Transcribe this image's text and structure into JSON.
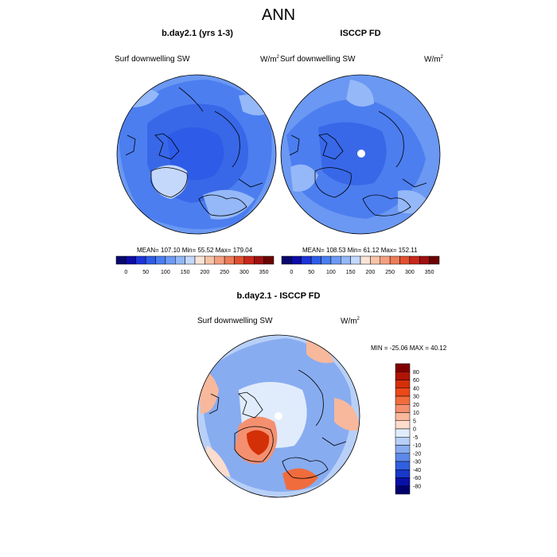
{
  "title": "ANN",
  "panels": [
    {
      "title": "b.day2.1 (yrs 1-3)",
      "variable": "Surf downwelling SW",
      "units_base": "W/m",
      "units_exp": "2",
      "stats": "MEAN= 107.10  Min=  55.52  Max= 179.04"
    },
    {
      "title": "ISCCP FD",
      "variable": "Surf downwelling SW",
      "units_base": "W/m",
      "units_exp": "2",
      "stats": "MEAN= 108.53  Min=  61.12  Max= 152.11"
    }
  ],
  "diff_panel": {
    "title": "b.day2.1 - ISCCP FD",
    "variable": "Surf downwelling SW",
    "units_base": "W/m",
    "units_exp": "2",
    "stats": "MIN = -25.06 MAX =  40.12"
  },
  "abs_colorbar": {
    "tick_labels": [
      "0",
      "50",
      "100",
      "150",
      "200",
      "250",
      "300",
      "350"
    ],
    "colors": [
      "#08086e",
      "#0c0ca8",
      "#1c34d8",
      "#2e5ce8",
      "#4a7ef0",
      "#6c9af4",
      "#94b8f8",
      "#c4d8fc",
      "#f8e4d8",
      "#f8c4a8",
      "#f4a080",
      "#ec7c58",
      "#e05030",
      "#c8281c",
      "#a01010",
      "#6c0404"
    ]
  },
  "diff_colorbar": {
    "tick_labels": [
      "80",
      "60",
      "40",
      "30",
      "20",
      "10",
      "5",
      "0",
      "-5",
      "-10",
      "-20",
      "-30",
      "-40",
      "-60",
      "-80"
    ],
    "colors": [
      "#800000",
      "#b01404",
      "#d43008",
      "#ec4818",
      "#f06c3c",
      "#f49070",
      "#f8b89c",
      "#fcdccc",
      "#e0ecfc",
      "#b8d0f8",
      "#88acf0",
      "#5c88e8",
      "#3060e0",
      "#1838c8",
      "#0810a8",
      "#00006c"
    ]
  }
}
